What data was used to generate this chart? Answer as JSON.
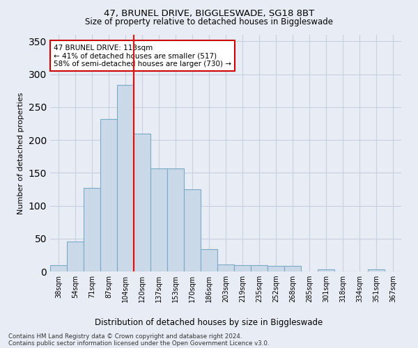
{
  "title_line1": "47, BRUNEL DRIVE, BIGGLESWADE, SG18 8BT",
  "title_line2": "Size of property relative to detached houses in Biggleswade",
  "xlabel": "Distribution of detached houses by size in Biggleswade",
  "ylabel": "Number of detached properties",
  "categories": [
    "38sqm",
    "54sqm",
    "71sqm",
    "87sqm",
    "104sqm",
    "120sqm",
    "137sqm",
    "153sqm",
    "170sqm",
    "186sqm",
    "203sqm",
    "219sqm",
    "235sqm",
    "252sqm",
    "268sqm",
    "285sqm",
    "301sqm",
    "318sqm",
    "334sqm",
    "351sqm",
    "367sqm"
  ],
  "values": [
    10,
    46,
    127,
    232,
    284,
    210,
    157,
    157,
    125,
    34,
    11,
    10,
    10,
    9,
    8,
    0,
    3,
    0,
    0,
    3,
    0
  ],
  "bar_color": "#c9d9e8",
  "bar_edge_color": "#7aaac8",
  "grid_color": "#c8d0e0",
  "bg_color": "#e8edf5",
  "property_line_x": 4.5,
  "annotation_line1": "47 BRUNEL DRIVE: 113sqm",
  "annotation_line2": "← 41% of detached houses are smaller (517)",
  "annotation_line3": "58% of semi-detached houses are larger (730) →",
  "annotation_box_facecolor": "#ffffff",
  "annotation_box_edgecolor": "#cc0000",
  "footnote1": "Contains HM Land Registry data © Crown copyright and database right 2024.",
  "footnote2": "Contains public sector information licensed under the Open Government Licence v3.0.",
  "ylim": [
    0,
    360
  ],
  "yticks": [
    0,
    50,
    100,
    150,
    200,
    250,
    300,
    350
  ]
}
